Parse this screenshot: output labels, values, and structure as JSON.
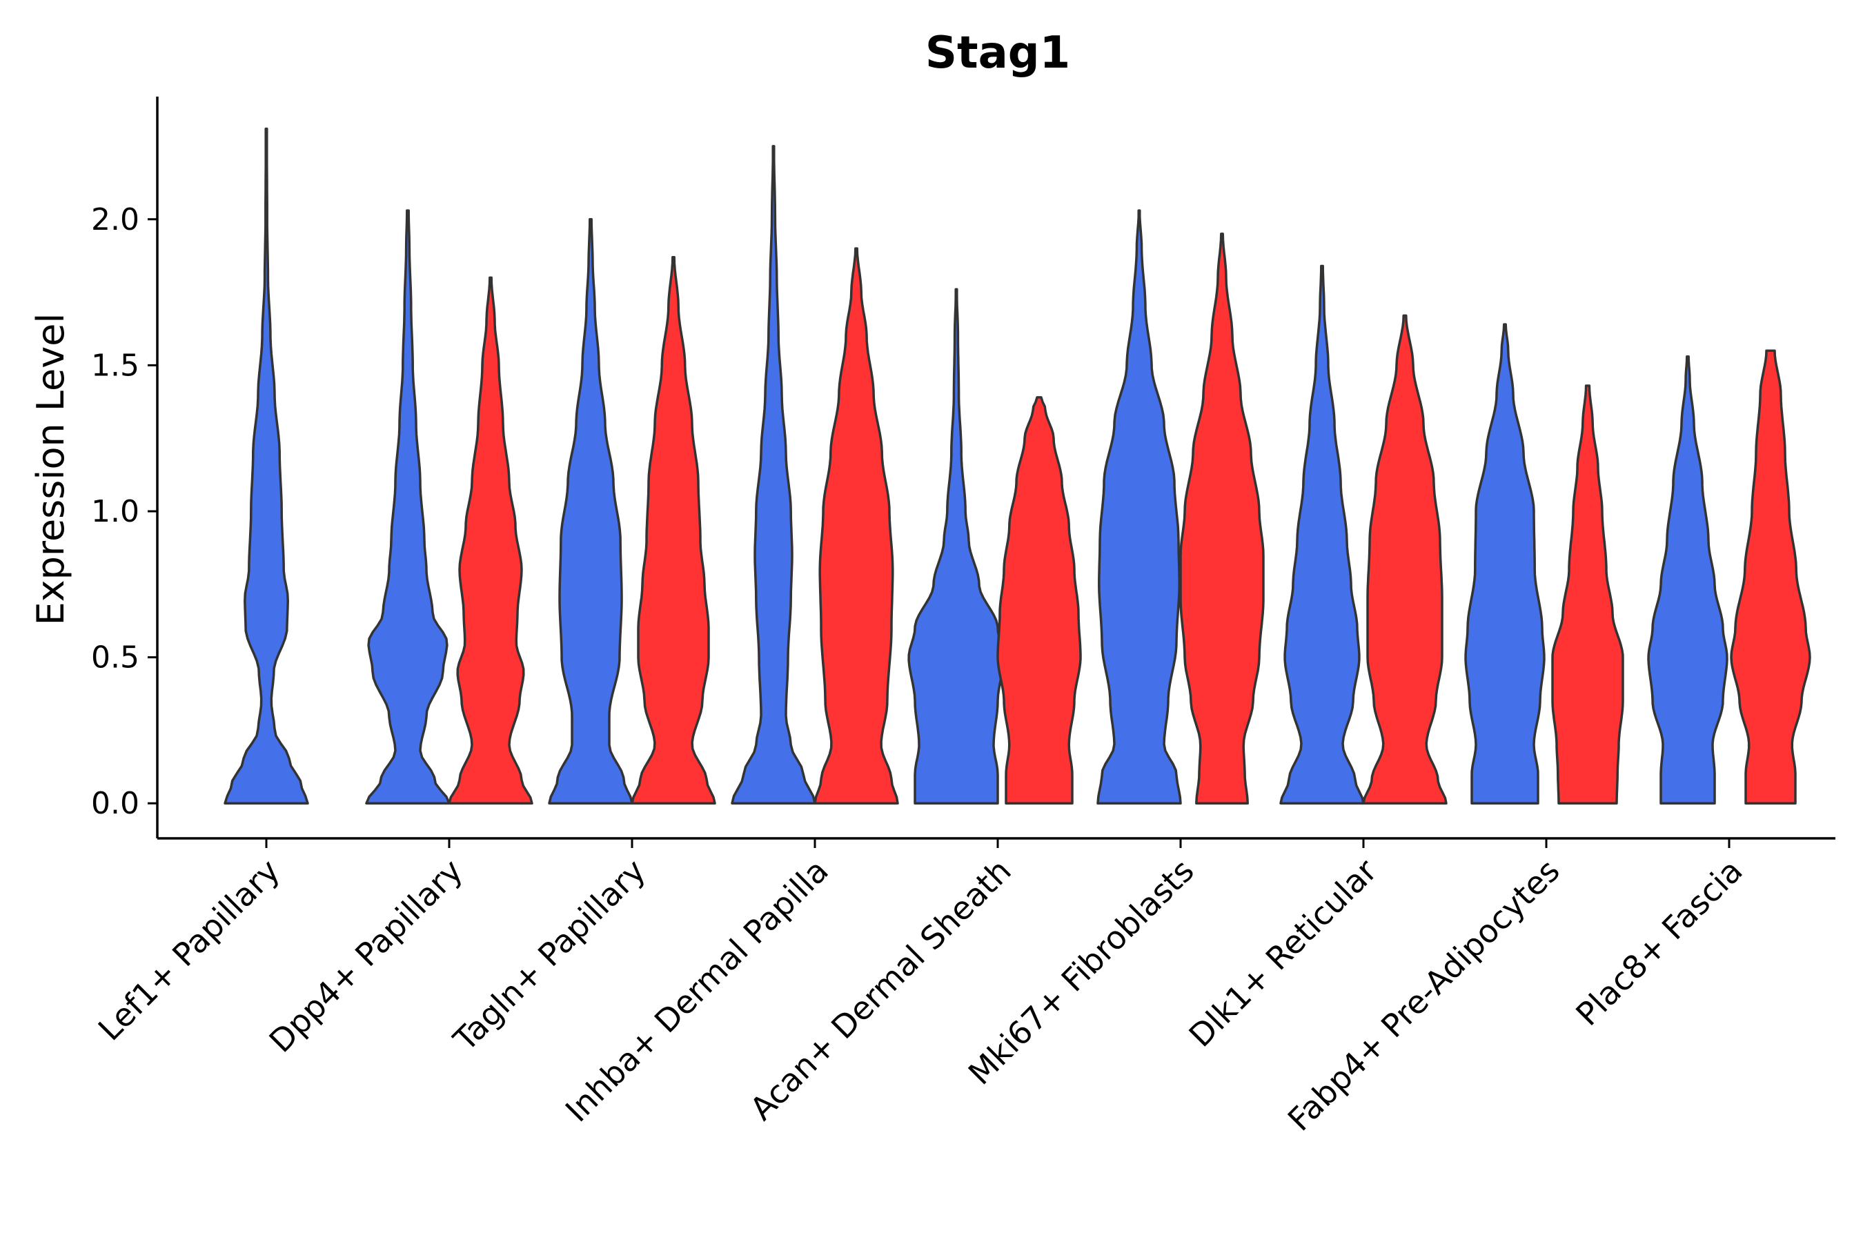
{
  "chart_data": {
    "type": "violin",
    "title": "Stag1",
    "xlabel": "",
    "ylabel": "Expression Level",
    "ylim": [
      -0.12,
      2.42
    ],
    "yticks": [
      0.0,
      0.5,
      1.0,
      1.5,
      2.0
    ],
    "ytick_labels": [
      "0.0",
      "0.5",
      "1.0",
      "1.5",
      "2.0"
    ],
    "grid": false,
    "legend": "none",
    "series_colors": {
      "group1": "#4470EA",
      "group2": "#FF3333"
    },
    "categories": [
      "Lef1+ Papillary",
      "Dpp4+ Papillary",
      "Tagln+ Papillary",
      "Inhba+ Dermal Papilla",
      "Acan+ Dermal Sheath",
      "Mki67+ Fibroblasts",
      "Dlk1+ Reticular",
      "Fabp4+ Pre-Adipocytes",
      "Plac8+ Fascia"
    ],
    "violins": [
      {
        "category": "Lef1+ Papillary",
        "group": "group1",
        "max": 2.31,
        "profile": [
          [
            0,
            1.0
          ],
          [
            0.06,
            0.85
          ],
          [
            0.15,
            0.55
          ],
          [
            0.25,
            0.2
          ],
          [
            0.35,
            0.12
          ],
          [
            0.45,
            0.18
          ],
          [
            0.6,
            0.5
          ],
          [
            0.7,
            0.52
          ],
          [
            0.8,
            0.42
          ],
          [
            1.0,
            0.37
          ],
          [
            1.2,
            0.32
          ],
          [
            1.4,
            0.2
          ],
          [
            1.6,
            0.1
          ],
          [
            1.8,
            0.04
          ],
          [
            2.0,
            0.02
          ],
          [
            2.31,
            0.01
          ]
        ]
      },
      {
        "category": "Dpp4+ Papillary",
        "group": "group1",
        "max": 2.03,
        "profile": [
          [
            0,
            1.0
          ],
          [
            0.08,
            0.65
          ],
          [
            0.18,
            0.3
          ],
          [
            0.3,
            0.45
          ],
          [
            0.45,
            0.85
          ],
          [
            0.55,
            0.95
          ],
          [
            0.65,
            0.6
          ],
          [
            0.8,
            0.45
          ],
          [
            0.9,
            0.4
          ],
          [
            1.1,
            0.3
          ],
          [
            1.3,
            0.2
          ],
          [
            1.5,
            0.12
          ],
          [
            1.7,
            0.08
          ],
          [
            1.9,
            0.04
          ],
          [
            2.03,
            0.02
          ]
        ]
      },
      {
        "category": "Dpp4+ Papillary",
        "group": "group2",
        "max": 1.8,
        "profile": [
          [
            0,
            1.0
          ],
          [
            0.08,
            0.75
          ],
          [
            0.2,
            0.45
          ],
          [
            0.35,
            0.7
          ],
          [
            0.45,
            0.8
          ],
          [
            0.55,
            0.62
          ],
          [
            0.65,
            0.65
          ],
          [
            0.8,
            0.75
          ],
          [
            0.95,
            0.6
          ],
          [
            1.1,
            0.45
          ],
          [
            1.3,
            0.3
          ],
          [
            1.5,
            0.2
          ],
          [
            1.65,
            0.1
          ],
          [
            1.8,
            0.02
          ]
        ]
      },
      {
        "category": "Tagln+ Papillary",
        "group": "group1",
        "max": 2.0,
        "profile": [
          [
            0,
            1.0
          ],
          [
            0.08,
            0.8
          ],
          [
            0.2,
            0.45
          ],
          [
            0.3,
            0.45
          ],
          [
            0.5,
            0.7
          ],
          [
            0.7,
            0.75
          ],
          [
            0.9,
            0.72
          ],
          [
            1.1,
            0.55
          ],
          [
            1.3,
            0.35
          ],
          [
            1.5,
            0.2
          ],
          [
            1.7,
            0.1
          ],
          [
            1.85,
            0.05
          ],
          [
            2.0,
            0.02
          ]
        ]
      },
      {
        "category": "Tagln+ Papillary",
        "group": "group2",
        "max": 1.87,
        "profile": [
          [
            0,
            1.0
          ],
          [
            0.08,
            0.8
          ],
          [
            0.2,
            0.45
          ],
          [
            0.35,
            0.7
          ],
          [
            0.5,
            0.85
          ],
          [
            0.6,
            0.85
          ],
          [
            0.75,
            0.75
          ],
          [
            0.9,
            0.65
          ],
          [
            1.1,
            0.6
          ],
          [
            1.3,
            0.45
          ],
          [
            1.5,
            0.28
          ],
          [
            1.7,
            0.12
          ],
          [
            1.87,
            0.02
          ]
        ]
      },
      {
        "category": "Inhba+ Dermal Papilla",
        "group": "group1",
        "max": 2.25,
        "profile": [
          [
            0,
            1.0
          ],
          [
            0.1,
            0.72
          ],
          [
            0.2,
            0.42
          ],
          [
            0.3,
            0.3
          ],
          [
            0.5,
            0.35
          ],
          [
            0.7,
            0.42
          ],
          [
            0.85,
            0.45
          ],
          [
            1.0,
            0.42
          ],
          [
            1.2,
            0.3
          ],
          [
            1.4,
            0.2
          ],
          [
            1.6,
            0.12
          ],
          [
            1.8,
            0.08
          ],
          [
            2.0,
            0.04
          ],
          [
            2.25,
            0.01
          ]
        ]
      },
      {
        "category": "Inhba+ Dermal Papilla",
        "group": "group2",
        "max": 1.9,
        "profile": [
          [
            0,
            1.0
          ],
          [
            0.08,
            0.85
          ],
          [
            0.2,
            0.6
          ],
          [
            0.35,
            0.75
          ],
          [
            0.6,
            0.85
          ],
          [
            0.8,
            0.88
          ],
          [
            1.0,
            0.8
          ],
          [
            1.2,
            0.62
          ],
          [
            1.4,
            0.42
          ],
          [
            1.6,
            0.25
          ],
          [
            1.75,
            0.12
          ],
          [
            1.9,
            0.02
          ]
        ]
      },
      {
        "category": "Acan+ Dermal Sheath",
        "group": "group1",
        "max": 1.76,
        "profile": [
          [
            0,
            1.0
          ],
          [
            0.1,
            1.0
          ],
          [
            0.2,
            0.9
          ],
          [
            0.35,
            1.0
          ],
          [
            0.5,
            1.15
          ],
          [
            0.6,
            1.0
          ],
          [
            0.75,
            0.55
          ],
          [
            0.9,
            0.3
          ],
          [
            1.0,
            0.22
          ],
          [
            1.2,
            0.12
          ],
          [
            1.4,
            0.06
          ],
          [
            1.6,
            0.04
          ],
          [
            1.76,
            0.01
          ]
        ]
      },
      {
        "category": "Acan+ Dermal Sheath",
        "group": "group2",
        "max": 1.39,
        "profile": [
          [
            0,
            0.8
          ],
          [
            0.1,
            0.8
          ],
          [
            0.2,
            0.72
          ],
          [
            0.35,
            0.85
          ],
          [
            0.5,
            1.0
          ],
          [
            0.65,
            0.95
          ],
          [
            0.8,
            0.85
          ],
          [
            0.95,
            0.72
          ],
          [
            1.1,
            0.55
          ],
          [
            1.25,
            0.35
          ],
          [
            1.35,
            0.15
          ],
          [
            1.39,
            0.05
          ]
        ]
      },
      {
        "category": "Mki67+ Fibroblasts",
        "group": "group1",
        "max": 2.03,
        "profile": [
          [
            0,
            1.0
          ],
          [
            0.1,
            0.9
          ],
          [
            0.2,
            0.6
          ],
          [
            0.35,
            0.7
          ],
          [
            0.55,
            0.9
          ],
          [
            0.75,
            0.97
          ],
          [
            0.9,
            0.95
          ],
          [
            1.1,
            0.85
          ],
          [
            1.3,
            0.6
          ],
          [
            1.5,
            0.3
          ],
          [
            1.7,
            0.15
          ],
          [
            1.9,
            0.06
          ],
          [
            2.03,
            0.01
          ]
        ]
      },
      {
        "category": "Mki67+ Fibroblasts",
        "group": "group2",
        "max": 1.95,
        "profile": [
          [
            0,
            0.62
          ],
          [
            0.1,
            0.55
          ],
          [
            0.2,
            0.52
          ],
          [
            0.35,
            0.75
          ],
          [
            0.5,
            0.9
          ],
          [
            0.7,
            1.0
          ],
          [
            0.85,
            1.0
          ],
          [
            1.0,
            0.9
          ],
          [
            1.2,
            0.7
          ],
          [
            1.4,
            0.45
          ],
          [
            1.6,
            0.25
          ],
          [
            1.8,
            0.1
          ],
          [
            1.95,
            0.02
          ]
        ]
      },
      {
        "category": "Dlk1+ Reticular",
        "group": "group1",
        "max": 1.84,
        "profile": [
          [
            0,
            1.0
          ],
          [
            0.08,
            0.8
          ],
          [
            0.2,
            0.5
          ],
          [
            0.35,
            0.75
          ],
          [
            0.5,
            0.9
          ],
          [
            0.6,
            0.85
          ],
          [
            0.75,
            0.7
          ],
          [
            0.9,
            0.6
          ],
          [
            1.1,
            0.45
          ],
          [
            1.3,
            0.3
          ],
          [
            1.5,
            0.15
          ],
          [
            1.7,
            0.05
          ],
          [
            1.84,
            0.02
          ]
        ]
      },
      {
        "category": "Dlk1+ Reticular",
        "group": "group2",
        "max": 1.67,
        "profile": [
          [
            0,
            1.0
          ],
          [
            0.08,
            0.8
          ],
          [
            0.2,
            0.52
          ],
          [
            0.35,
            0.75
          ],
          [
            0.5,
            0.9
          ],
          [
            0.7,
            0.9
          ],
          [
            0.9,
            0.85
          ],
          [
            1.1,
            0.7
          ],
          [
            1.3,
            0.45
          ],
          [
            1.5,
            0.2
          ],
          [
            1.67,
            0.03
          ]
        ]
      },
      {
        "category": "Fabp4+ Pre-Adipocytes",
        "group": "group1",
        "max": 1.64,
        "profile": [
          [
            0,
            0.8
          ],
          [
            0.1,
            0.8
          ],
          [
            0.2,
            0.7
          ],
          [
            0.35,
            0.85
          ],
          [
            0.5,
            0.95
          ],
          [
            0.6,
            0.9
          ],
          [
            0.8,
            0.72
          ],
          [
            1.0,
            0.7
          ],
          [
            1.2,
            0.45
          ],
          [
            1.4,
            0.2
          ],
          [
            1.55,
            0.08
          ],
          [
            1.64,
            0.02
          ]
        ]
      },
      {
        "category": "Fabp4+ Pre-Adipocytes",
        "group": "group2",
        "max": 1.43,
        "profile": [
          [
            0,
            0.7
          ],
          [
            0.1,
            0.72
          ],
          [
            0.2,
            0.75
          ],
          [
            0.35,
            0.85
          ],
          [
            0.5,
            0.85
          ],
          [
            0.65,
            0.6
          ],
          [
            0.8,
            0.45
          ],
          [
            1.0,
            0.35
          ],
          [
            1.15,
            0.25
          ],
          [
            1.3,
            0.12
          ],
          [
            1.43,
            0.04
          ]
        ]
      },
      {
        "category": "Plac8+ Fascia",
        "group": "group1",
        "max": 1.53,
        "profile": [
          [
            0,
            0.65
          ],
          [
            0.1,
            0.65
          ],
          [
            0.2,
            0.6
          ],
          [
            0.35,
            0.85
          ],
          [
            0.5,
            0.95
          ],
          [
            0.6,
            0.85
          ],
          [
            0.75,
            0.65
          ],
          [
            0.9,
            0.5
          ],
          [
            1.1,
            0.35
          ],
          [
            1.3,
            0.15
          ],
          [
            1.45,
            0.05
          ],
          [
            1.53,
            0.02
          ]
        ]
      },
      {
        "category": "Plac8+ Fascia",
        "group": "group2",
        "max": 1.55,
        "profile": [
          [
            0,
            0.6
          ],
          [
            0.1,
            0.6
          ],
          [
            0.2,
            0.52
          ],
          [
            0.35,
            0.75
          ],
          [
            0.5,
            0.95
          ],
          [
            0.6,
            0.85
          ],
          [
            0.8,
            0.62
          ],
          [
            1.0,
            0.45
          ],
          [
            1.2,
            0.35
          ],
          [
            1.4,
            0.25
          ],
          [
            1.55,
            0.1
          ]
        ]
      }
    ]
  }
}
